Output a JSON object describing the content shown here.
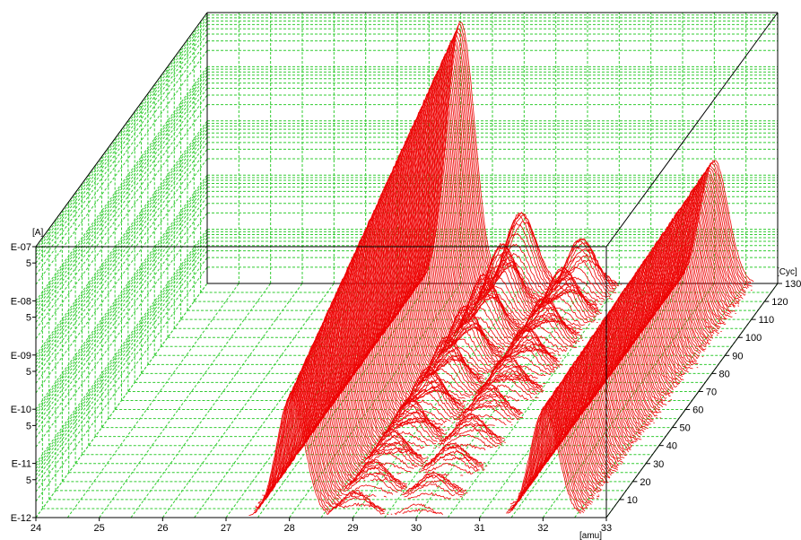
{
  "chart_data": {
    "type": "3d-waterfall",
    "x_axis": {
      "unit": "[amu]",
      "range": [
        24,
        33
      ],
      "ticks": [
        "24",
        "25",
        "26",
        "27",
        "28",
        "29",
        "30",
        "31",
        "32",
        "33"
      ]
    },
    "y_axis": {
      "unit": "[A]",
      "scale": "log",
      "range": [
        1e-12,
        1e-07
      ],
      "ticks": [
        "E-12",
        "5",
        "E-11",
        "5",
        "E-10",
        "5",
        "E-09",
        "5",
        "E-08",
        "5",
        "E-07"
      ]
    },
    "z_axis": {
      "unit": "[Cyc]",
      "range": [
        0,
        130
      ],
      "ticks": [
        "10",
        "20",
        "30",
        "40",
        "50",
        "60",
        "70",
        "80",
        "90",
        "100",
        "110",
        "120",
        "130"
      ]
    },
    "grid": true,
    "colors": {
      "grid": "#33cc33",
      "series": "#ee0000",
      "frame": "#000000"
    },
    "peaks": [
      {
        "mass": 28,
        "log_current_start": -9.8,
        "log_current_end": -7.15
      },
      {
        "mass": 29,
        "log_current_start": -11.9,
        "log_current_end": -10.9
      },
      {
        "mass": 30,
        "log_current_start": -12.0,
        "log_current_end": -11.3
      },
      {
        "mass": 32,
        "log_current_start": -10.0,
        "log_current_end": -9.7
      }
    ]
  }
}
